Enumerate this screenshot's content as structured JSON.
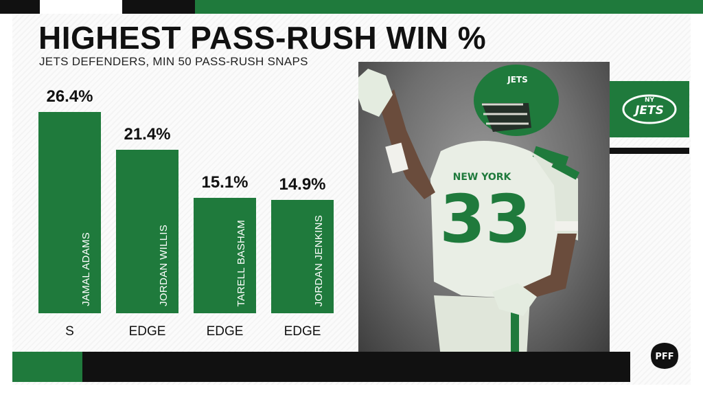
{
  "title": "HIGHEST PASS-RUSH WIN %",
  "subtitle": "JETS DEFENDERS, MIN 50 PASS-RUSH SNAPS",
  "colors": {
    "accent_green": "#1f7a3c",
    "dark": "#111111",
    "background": "#ffffff"
  },
  "logo": {
    "team_wordmark": "JETS",
    "team_letters": "NY",
    "icon": "jets-logo-icon"
  },
  "brand_mark": "PFF",
  "photo": {
    "jersey_text": "NEW YORK",
    "jersey_number": "33",
    "helmet_text": "JETS"
  },
  "chart_data": {
    "type": "bar",
    "title": "HIGHEST PASS-RUSH WIN %",
    "subtitle": "JETS DEFENDERS, MIN 50 PASS-RUSH SNAPS",
    "categories": [
      "JAMAL ADAMS",
      "JORDAN WILLIS",
      "TARELL BASHAM",
      "JORDAN JENKINS"
    ],
    "positions": [
      "S",
      "EDGE",
      "EDGE",
      "EDGE"
    ],
    "values": [
      26.4,
      21.4,
      15.1,
      14.9
    ],
    "value_labels": [
      "26.4%",
      "21.4%",
      "15.1%",
      "14.9%"
    ],
    "ylim": [
      0,
      26.4
    ],
    "grid": false
  }
}
